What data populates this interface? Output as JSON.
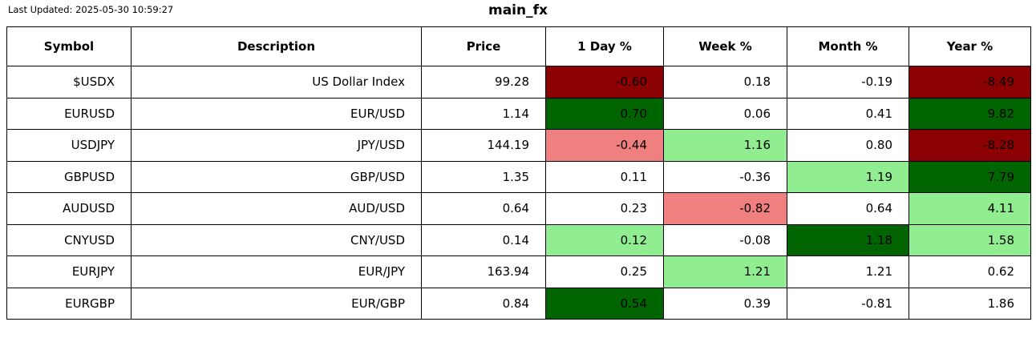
{
  "page": {
    "last_updated": "Last Updated: 2025-05-30 10:59:27",
    "title": "main_fx"
  },
  "colors": {
    "darkred": "#8b0000",
    "lightred": "#f08080",
    "darkgreen": "#006400",
    "lightgreen": "#90ee90",
    "none": "#ffffff",
    "border": "#000000",
    "text": "#000000"
  },
  "chart_data": {
    "type": "table",
    "title": "main_fx",
    "columns": [
      "Symbol",
      "Description",
      "Price",
      "1 Day %",
      "Week %",
      "Month %",
      "Year %"
    ],
    "pct_column_keys": [
      "day",
      "week",
      "month",
      "year"
    ],
    "rows": [
      {
        "symbol": "$USDX",
        "description": "US Dollar Index",
        "price": "99.28",
        "pcts": [
          {
            "value": "-0.60",
            "color": "darkred"
          },
          {
            "value": "0.18",
            "color": "none"
          },
          {
            "value": "-0.19",
            "color": "none"
          },
          {
            "value": "-8.49",
            "color": "darkred"
          }
        ]
      },
      {
        "symbol": "EURUSD",
        "description": "EUR/USD",
        "price": "1.14",
        "pcts": [
          {
            "value": "0.70",
            "color": "darkgreen"
          },
          {
            "value": "0.06",
            "color": "none"
          },
          {
            "value": "0.41",
            "color": "none"
          },
          {
            "value": "9.82",
            "color": "darkgreen"
          }
        ]
      },
      {
        "symbol": "USDJPY",
        "description": "JPY/USD",
        "price": "144.19",
        "pcts": [
          {
            "value": "-0.44",
            "color": "lightred"
          },
          {
            "value": "1.16",
            "color": "lightgreen"
          },
          {
            "value": "0.80",
            "color": "none"
          },
          {
            "value": "-8.28",
            "color": "darkred"
          }
        ]
      },
      {
        "symbol": "GBPUSD",
        "description": "GBP/USD",
        "price": "1.35",
        "pcts": [
          {
            "value": "0.11",
            "color": "none"
          },
          {
            "value": "-0.36",
            "color": "none"
          },
          {
            "value": "1.19",
            "color": "lightgreen"
          },
          {
            "value": "7.79",
            "color": "darkgreen"
          }
        ]
      },
      {
        "symbol": "AUDUSD",
        "description": "AUD/USD",
        "price": "0.64",
        "pcts": [
          {
            "value": "0.23",
            "color": "none"
          },
          {
            "value": "-0.82",
            "color": "lightred"
          },
          {
            "value": "0.64",
            "color": "none"
          },
          {
            "value": "4.11",
            "color": "lightgreen"
          }
        ]
      },
      {
        "symbol": "CNYUSD",
        "description": "CNY/USD",
        "price": "0.14",
        "pcts": [
          {
            "value": "0.12",
            "color": "lightgreen"
          },
          {
            "value": "-0.08",
            "color": "none"
          },
          {
            "value": "1.18",
            "color": "darkgreen"
          },
          {
            "value": "1.58",
            "color": "lightgreen"
          }
        ]
      },
      {
        "symbol": "EURJPY",
        "description": "EUR/JPY",
        "price": "163.94",
        "pcts": [
          {
            "value": "0.25",
            "color": "none"
          },
          {
            "value": "1.21",
            "color": "lightgreen"
          },
          {
            "value": "1.21",
            "color": "none"
          },
          {
            "value": "0.62",
            "color": "none"
          }
        ]
      },
      {
        "symbol": "EURGBP",
        "description": "EUR/GBP",
        "price": "0.84",
        "pcts": [
          {
            "value": "0.54",
            "color": "darkgreen"
          },
          {
            "value": "0.39",
            "color": "none"
          },
          {
            "value": "-0.81",
            "color": "none"
          },
          {
            "value": "1.86",
            "color": "none"
          }
        ]
      }
    ]
  }
}
